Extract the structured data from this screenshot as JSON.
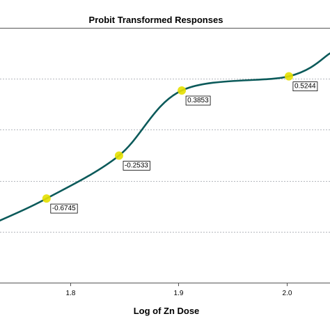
{
  "chart_data": {
    "type": "line",
    "title": "Probit Transformed Responses",
    "xlabel": "Log of Zn Dose",
    "ylabel": "",
    "x_ticks": [
      "1.8",
      "1.9",
      "2.0"
    ],
    "xlim": [
      1.735,
      2.04
    ],
    "ylim": [
      -1.5,
      1.0
    ],
    "grid": true,
    "series": [
      {
        "color": "#0b5a5a",
        "smooth": true,
        "x": [
          1.735,
          1.778,
          1.845,
          1.903,
          2.002,
          2.04
        ],
        "y": [
          -0.89,
          -0.6745,
          -0.2533,
          0.3853,
          0.5244,
          0.75
        ]
      }
    ],
    "points": [
      {
        "x": 1.778,
        "y": -0.6745,
        "label": "-0.6745"
      },
      {
        "x": 1.845,
        "y": -0.2533,
        "label": "-0.2533"
      },
      {
        "x": 1.903,
        "y": 0.3853,
        "label": "0.3853"
      },
      {
        "x": 2.002,
        "y": 0.5244,
        "label": "0.5244"
      }
    ],
    "marker_color": "#e5e000",
    "line_color": "#0b5a5a"
  }
}
